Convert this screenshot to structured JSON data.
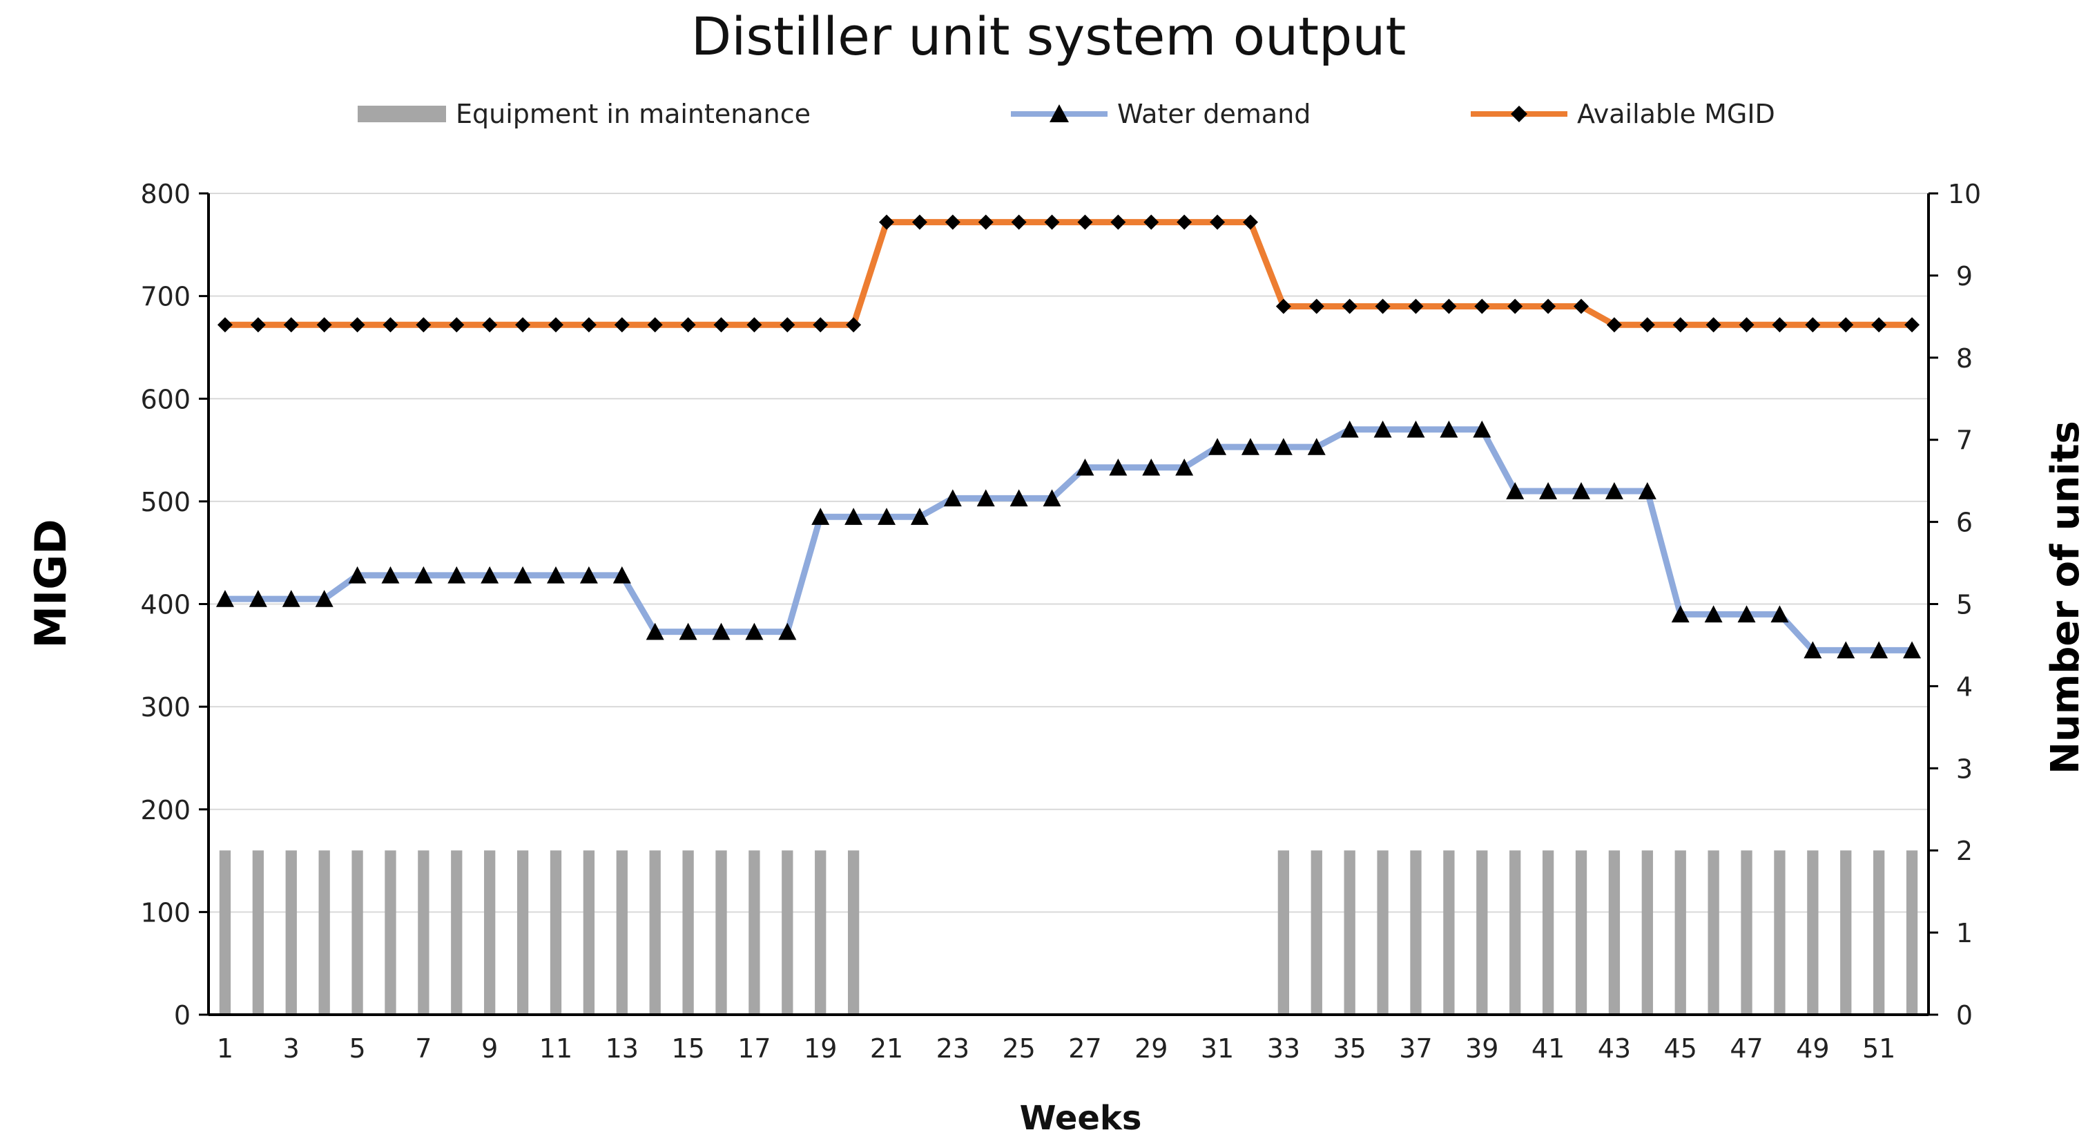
{
  "chart_data": {
    "type": "line",
    "title": "Distiller unit system output",
    "xlabel": "Weeks",
    "ylabel": "MIGD",
    "y2label": "Number of units",
    "ylim": [
      0,
      800
    ],
    "y2lim": [
      0,
      10
    ],
    "yticks": [
      "0",
      "100",
      "200",
      "300",
      "400",
      "500",
      "600",
      "700",
      "800"
    ],
    "y2ticks": [
      "0",
      "1",
      "2",
      "3",
      "4",
      "5",
      "6",
      "7",
      "8",
      "9",
      "10"
    ],
    "xtick_labels": [
      "1",
      "3",
      "5",
      "7",
      "9",
      "11",
      "13",
      "15",
      "17",
      "19",
      "21",
      "23",
      "25",
      "27",
      "29",
      "31",
      "33",
      "35",
      "37",
      "39",
      "41",
      "43",
      "45",
      "47",
      "49",
      "51"
    ],
    "x": [
      1,
      2,
      3,
      4,
      5,
      6,
      7,
      8,
      9,
      10,
      11,
      12,
      13,
      14,
      15,
      16,
      17,
      18,
      19,
      20,
      21,
      22,
      23,
      24,
      25,
      26,
      27,
      28,
      29,
      30,
      31,
      32,
      33,
      34,
      35,
      36,
      37,
      38,
      39,
      40,
      41,
      42,
      43,
      44,
      45,
      46,
      47,
      48,
      49,
      50,
      51,
      52
    ],
    "grid": true,
    "legend_position": "top",
    "series": [
      {
        "name": "Equipment in maintenance",
        "type": "bar",
        "axis": "right",
        "color": "#a6a6a6",
        "values": [
          2,
          2,
          2,
          2,
          2,
          2,
          2,
          2,
          2,
          2,
          2,
          2,
          2,
          2,
          2,
          2,
          2,
          2,
          2,
          2,
          0,
          0,
          0,
          0,
          0,
          0,
          0,
          0,
          0,
          0,
          0,
          0,
          2,
          2,
          2,
          2,
          2,
          2,
          2,
          2,
          2,
          2,
          2,
          2,
          2,
          2,
          2,
          2,
          2,
          2,
          2,
          2
        ]
      },
      {
        "name": "Water demand",
        "type": "line",
        "axis": "left",
        "color": "#8faadc",
        "marker": "triangle",
        "values": [
          405,
          405,
          405,
          405,
          428,
          428,
          428,
          428,
          428,
          428,
          428,
          428,
          428,
          373,
          373,
          373,
          373,
          373,
          485,
          485,
          485,
          485,
          503,
          503,
          503,
          503,
          533,
          533,
          533,
          533,
          553,
          553,
          553,
          553,
          570,
          570,
          570,
          570,
          570,
          510,
          510,
          510,
          510,
          510,
          390,
          390,
          390,
          390,
          355,
          355,
          355,
          355
        ]
      },
      {
        "name": "Available MGID",
        "type": "line",
        "axis": "left",
        "color": "#ed7d31",
        "marker": "diamond",
        "values": [
          672,
          672,
          672,
          672,
          672,
          672,
          672,
          672,
          672,
          672,
          672,
          672,
          672,
          672,
          672,
          672,
          672,
          672,
          672,
          672,
          772,
          772,
          772,
          772,
          772,
          772,
          772,
          772,
          772,
          772,
          772,
          772,
          690,
          690,
          690,
          690,
          690,
          690,
          690,
          690,
          690,
          690,
          672,
          672,
          672,
          672,
          672,
          672,
          672,
          672,
          672,
          672
        ]
      }
    ]
  }
}
